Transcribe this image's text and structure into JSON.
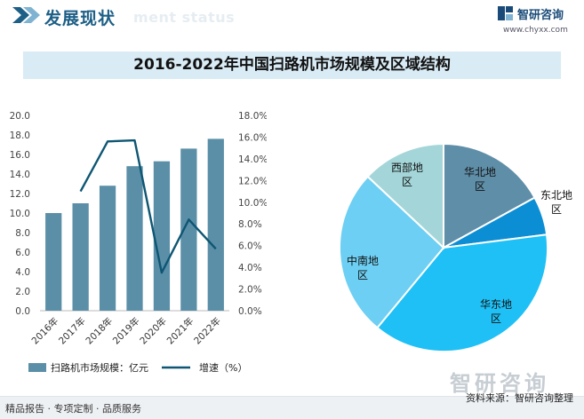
{
  "header": {
    "title": "发展现状",
    "ghost": "ment status",
    "brand_name": "智研咨询",
    "brand_url": "www.chyxx.com"
  },
  "chart_title": "2016-2022年中国扫路机市场规模及区域结构",
  "chart_data": [
    {
      "type": "bar",
      "categories": [
        "2016年",
        "2017年",
        "2018年",
        "2019年",
        "2020年",
        "2021年",
        "2022年"
      ],
      "series": [
        {
          "name": "扫路机市场规模：亿元",
          "type": "bar",
          "axis": "left",
          "values": [
            10.0,
            11.0,
            12.8,
            14.8,
            15.3,
            16.6,
            17.6
          ],
          "color": "#5b8fa8"
        },
        {
          "name": "增速（%）",
          "type": "line",
          "axis": "right",
          "values": [
            null,
            11.0,
            15.6,
            15.7,
            3.5,
            8.4,
            5.7
          ],
          "color": "#0e5673"
        }
      ],
      "y_left": {
        "min": 0,
        "max": 20,
        "step": 2,
        "ticks": [
          "0.0",
          "2.0",
          "4.0",
          "6.0",
          "8.0",
          "10.0",
          "12.0",
          "14.0",
          "16.0",
          "18.0",
          "20.0"
        ]
      },
      "y_right": {
        "min": 0,
        "max": 18,
        "step": 2,
        "ticks": [
          "0.0%",
          "2.0%",
          "4.0%",
          "6.0%",
          "8.0%",
          "10.0%",
          "12.0%",
          "14.0%",
          "16.0%",
          "18.0%"
        ]
      },
      "legend_position": "bottom",
      "grid": false
    },
    {
      "type": "pie",
      "labels": [
        "华北地区",
        "东北地区",
        "华东地区",
        "中南地区",
        "西部地区"
      ],
      "label_lines": [
        [
          "华北地",
          "区"
        ],
        [
          "东北地",
          "区"
        ],
        [
          "华东地",
          "区"
        ],
        [
          "中南地",
          "区"
        ],
        [
          "西部地",
          "区"
        ]
      ],
      "values": [
        17,
        6,
        38,
        26,
        13
      ],
      "colors": [
        "#5f8ea8",
        "#0c8ed4",
        "#1fc0f5",
        "#6dcff3",
        "#a4d6d9"
      ]
    }
  ],
  "footer": {
    "left": "精品报告 · 专项定制 · 品质服务",
    "source": "资料来源：智研咨询整理",
    "watermark": "智研咨询"
  }
}
